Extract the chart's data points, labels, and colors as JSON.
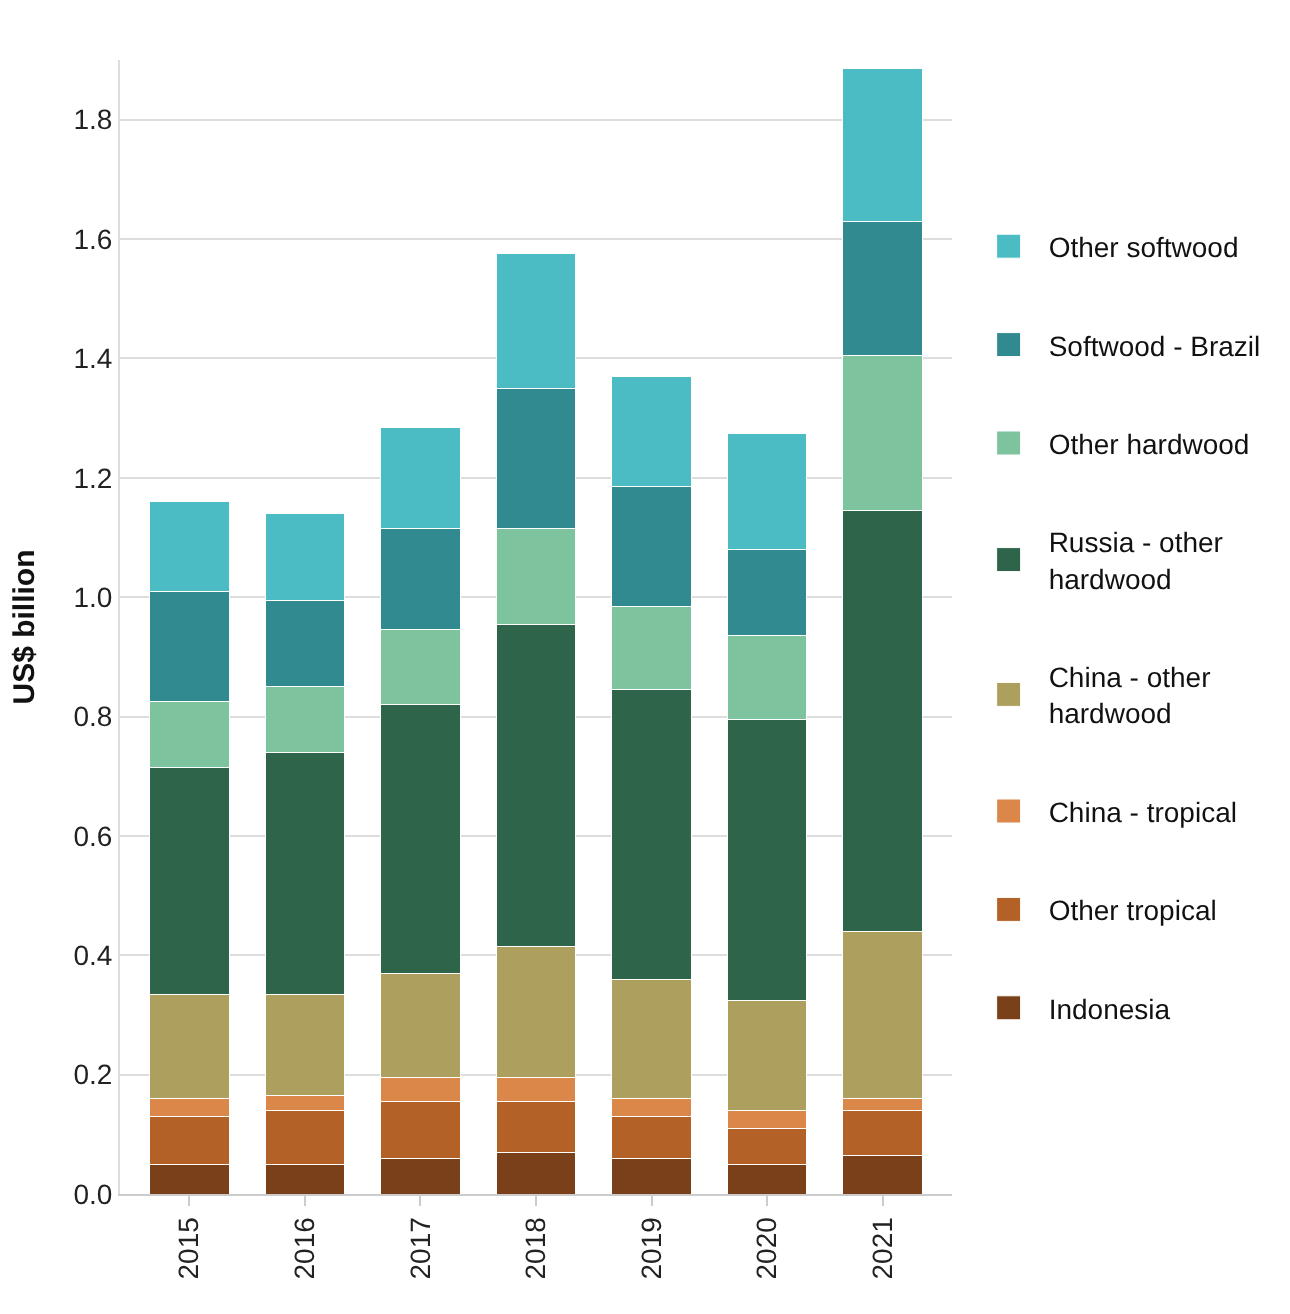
{
  "chart_data": {
    "type": "bar",
    "stacked": true,
    "ylabel": "US$ billion",
    "categories": [
      "2015",
      "2016",
      "2017",
      "2018",
      "2019",
      "2020",
      "2021"
    ],
    "series": [
      {
        "name": "Indonesia",
        "color": "#7a4019",
        "values": [
          0.05,
          0.05,
          0.06,
          0.07,
          0.06,
          0.05,
          0.065
        ]
      },
      {
        "name": "Other tropical",
        "color": "#b36126",
        "values": [
          0.08,
          0.09,
          0.095,
          0.085,
          0.07,
          0.06,
          0.075
        ]
      },
      {
        "name": "China - tropical",
        "color": "#dc874a",
        "values": [
          0.03,
          0.025,
          0.04,
          0.04,
          0.03,
          0.03,
          0.02
        ]
      },
      {
        "name": "China - other hardwood",
        "color": "#ada05e",
        "values": [
          0.175,
          0.17,
          0.175,
          0.22,
          0.2,
          0.185,
          0.28
        ]
      },
      {
        "name": "Russia - other hardwood",
        "color": "#2d644a",
        "values": [
          0.38,
          0.405,
          0.45,
          0.54,
          0.485,
          0.47,
          0.705
        ]
      },
      {
        "name": "Other hardwood",
        "color": "#7dc49e",
        "values": [
          0.11,
          0.11,
          0.125,
          0.16,
          0.14,
          0.14,
          0.26
        ]
      },
      {
        "name": "Softwood - Brazil",
        "color": "#318a90",
        "values": [
          0.185,
          0.145,
          0.17,
          0.235,
          0.2,
          0.145,
          0.225
        ]
      },
      {
        "name": "Other softwood",
        "color": "#4cbcc4",
        "values": [
          0.15,
          0.145,
          0.17,
          0.225,
          0.185,
          0.195,
          0.255
        ]
      }
    ],
    "ylim": [
      0,
      1.9
    ],
    "yticks": [
      {
        "value": 0,
        "label": "0.0"
      },
      0.2,
      0.4,
      0.6,
      0.8,
      {
        "value": 1,
        "label": "1.0"
      },
      1.2,
      1.4,
      1.6,
      1.8
    ],
    "grid": "y",
    "legend": "right"
  }
}
